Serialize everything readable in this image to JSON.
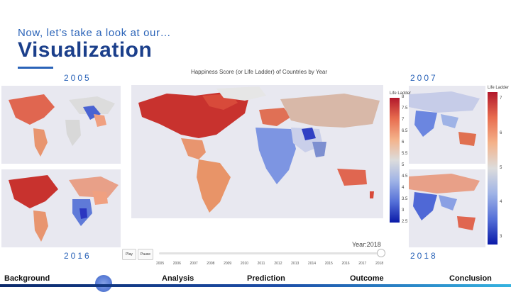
{
  "header": {
    "subtitle": "Now, let’s take a look at our…",
    "title": "Visualization"
  },
  "thumbnails": {
    "top_left_year": "2005",
    "top_right_year": "2007",
    "bottom_left_year": "2016",
    "bottom_right_year": "2018"
  },
  "main_chart": {
    "title": "Happiness Score (or Life Ladder) of Countries by Year",
    "colorbar_title": "Life Ladder",
    "colorbar_ticks": [
      "8",
      "7.5",
      "7",
      "6.5",
      "6",
      "5.5",
      "5",
      "4.5",
      "4",
      "3.5",
      "3",
      "2.5"
    ],
    "current_year_label": "Year:2018",
    "play_label": "Play",
    "pause_label": "Pause",
    "slider_years": [
      "2005",
      "2006",
      "2007",
      "2008",
      "2009",
      "2010",
      "2011",
      "2012",
      "2013",
      "2014",
      "2015",
      "2016",
      "2017",
      "2018"
    ],
    "selected_year": "2018"
  },
  "right_colorbar": {
    "title": "Life Ladder",
    "ticks": [
      "7",
      "6",
      "5",
      "4",
      "3"
    ]
  },
  "nav": {
    "items": [
      "Background",
      "Analysis",
      "Prediction",
      "Outcome",
      "Conclusion"
    ],
    "current_index": 1
  },
  "colors": {
    "accent": "#2a63b8",
    "title": "#1b3f8b",
    "ocean": "#e8e8f0",
    "high": "#b2182b",
    "low": "#0a1aa8"
  }
}
